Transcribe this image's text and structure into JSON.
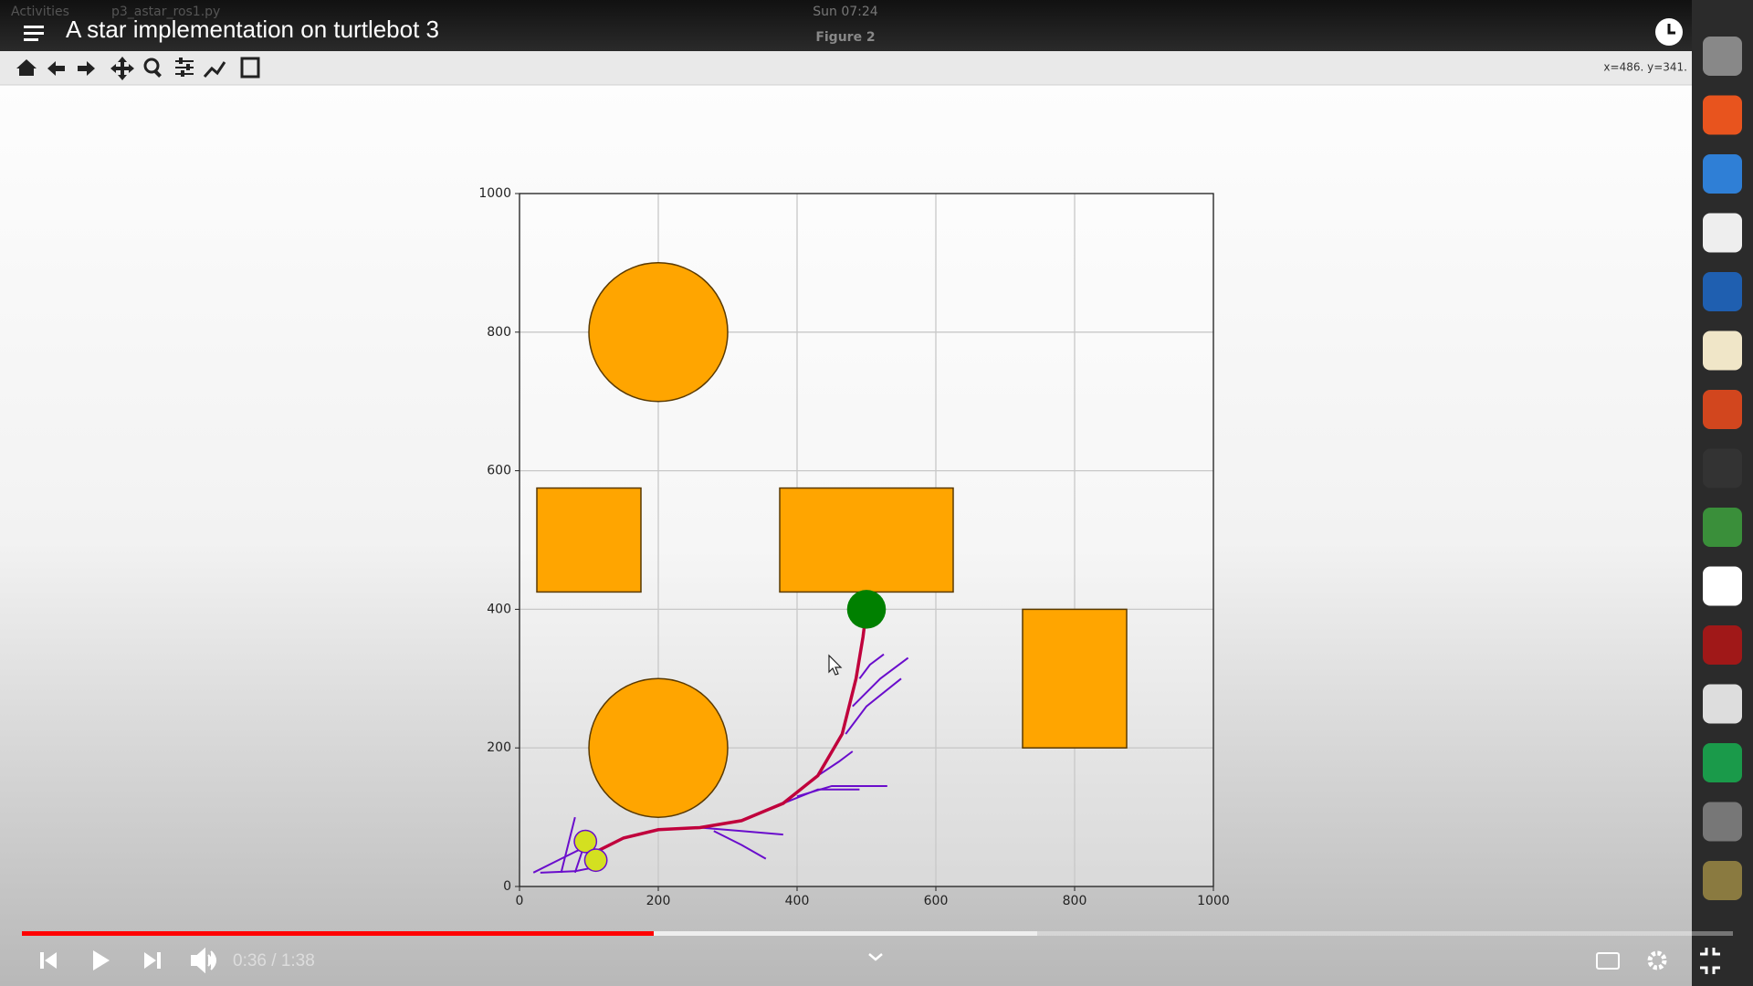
{
  "topbar": {
    "activities": "Activities",
    "app": "p3_astar_ros1.py",
    "clock": "Sun 07:24",
    "window_title": "Figure 2"
  },
  "video": {
    "title": "A star implementation on turtlebot 3",
    "time": "0:36 / 1:38"
  },
  "toolbar": {
    "coords": "x=486. y=341."
  },
  "plot": {
    "xlim": [
      0,
      1000
    ],
    "ylim": [
      0,
      1000
    ],
    "xticks": [
      0,
      200,
      400,
      600,
      800,
      1000
    ],
    "yticks": [
      0,
      200,
      400,
      600,
      800,
      1000
    ],
    "grid": true,
    "circles": [
      {
        "cx": 200,
        "cy": 800,
        "r": 100
      },
      {
        "cx": 200,
        "cy": 200,
        "r": 100
      }
    ],
    "rects": [
      {
        "x0": 25,
        "x1": 175,
        "y0": 425,
        "y1": 575
      },
      {
        "x0": 375,
        "x1": 625,
        "y0": 425,
        "y1": 575
      },
      {
        "x0": 725,
        "x1": 875,
        "y0": 200,
        "y1": 400
      }
    ],
    "obstacle_color": "#ffa500",
    "goal": {
      "x": 500,
      "y": 400,
      "r": 28,
      "color": "#008000"
    },
    "start": [
      {
        "x": 95,
        "y": 65,
        "r": 16
      },
      {
        "x": 110,
        "y": 38,
        "r": 16
      }
    ],
    "start_color": "#d4e020",
    "path": {
      "color": "#c0003c",
      "x": [
        110,
        150,
        200,
        260,
        320,
        380,
        430,
        465,
        485,
        495,
        500
      ],
      "y": [
        50,
        70,
        82,
        85,
        95,
        120,
        160,
        220,
        300,
        360,
        400
      ]
    },
    "explored_color": "#6a0dcc",
    "explored": [
      {
        "x": [
          20,
          60,
          90,
          110
        ],
        "y": [
          20,
          40,
          55,
          50
        ]
      },
      {
        "x": [
          30,
          80,
          120
        ],
        "y": [
          20,
          22,
          30
        ]
      },
      {
        "x": [
          60,
          70,
          80
        ],
        "y": [
          20,
          60,
          100
        ]
      },
      {
        "x": [
          80,
          90,
          100
        ],
        "y": [
          20,
          50,
          75
        ]
      },
      {
        "x": [
          260,
          320,
          380
        ],
        "y": [
          85,
          80,
          75
        ]
      },
      {
        "x": [
          280,
          320,
          355
        ],
        "y": [
          80,
          60,
          40
        ]
      },
      {
        "x": [
          380,
          430,
          490
        ],
        "y": [
          120,
          140,
          140
        ]
      },
      {
        "x": [
          400,
          450,
          530
        ],
        "y": [
          130,
          145,
          145
        ]
      },
      {
        "x": [
          470,
          500,
          550
        ],
        "y": [
          220,
          260,
          300
        ]
      },
      {
        "x": [
          480,
          520,
          560
        ],
        "y": [
          260,
          300,
          330
        ]
      },
      {
        "x": [
          490,
          505,
          525
        ],
        "y": [
          300,
          320,
          335
        ]
      },
      {
        "x": [
          430,
          460,
          480
        ],
        "y": [
          160,
          180,
          195
        ]
      }
    ]
  }
}
